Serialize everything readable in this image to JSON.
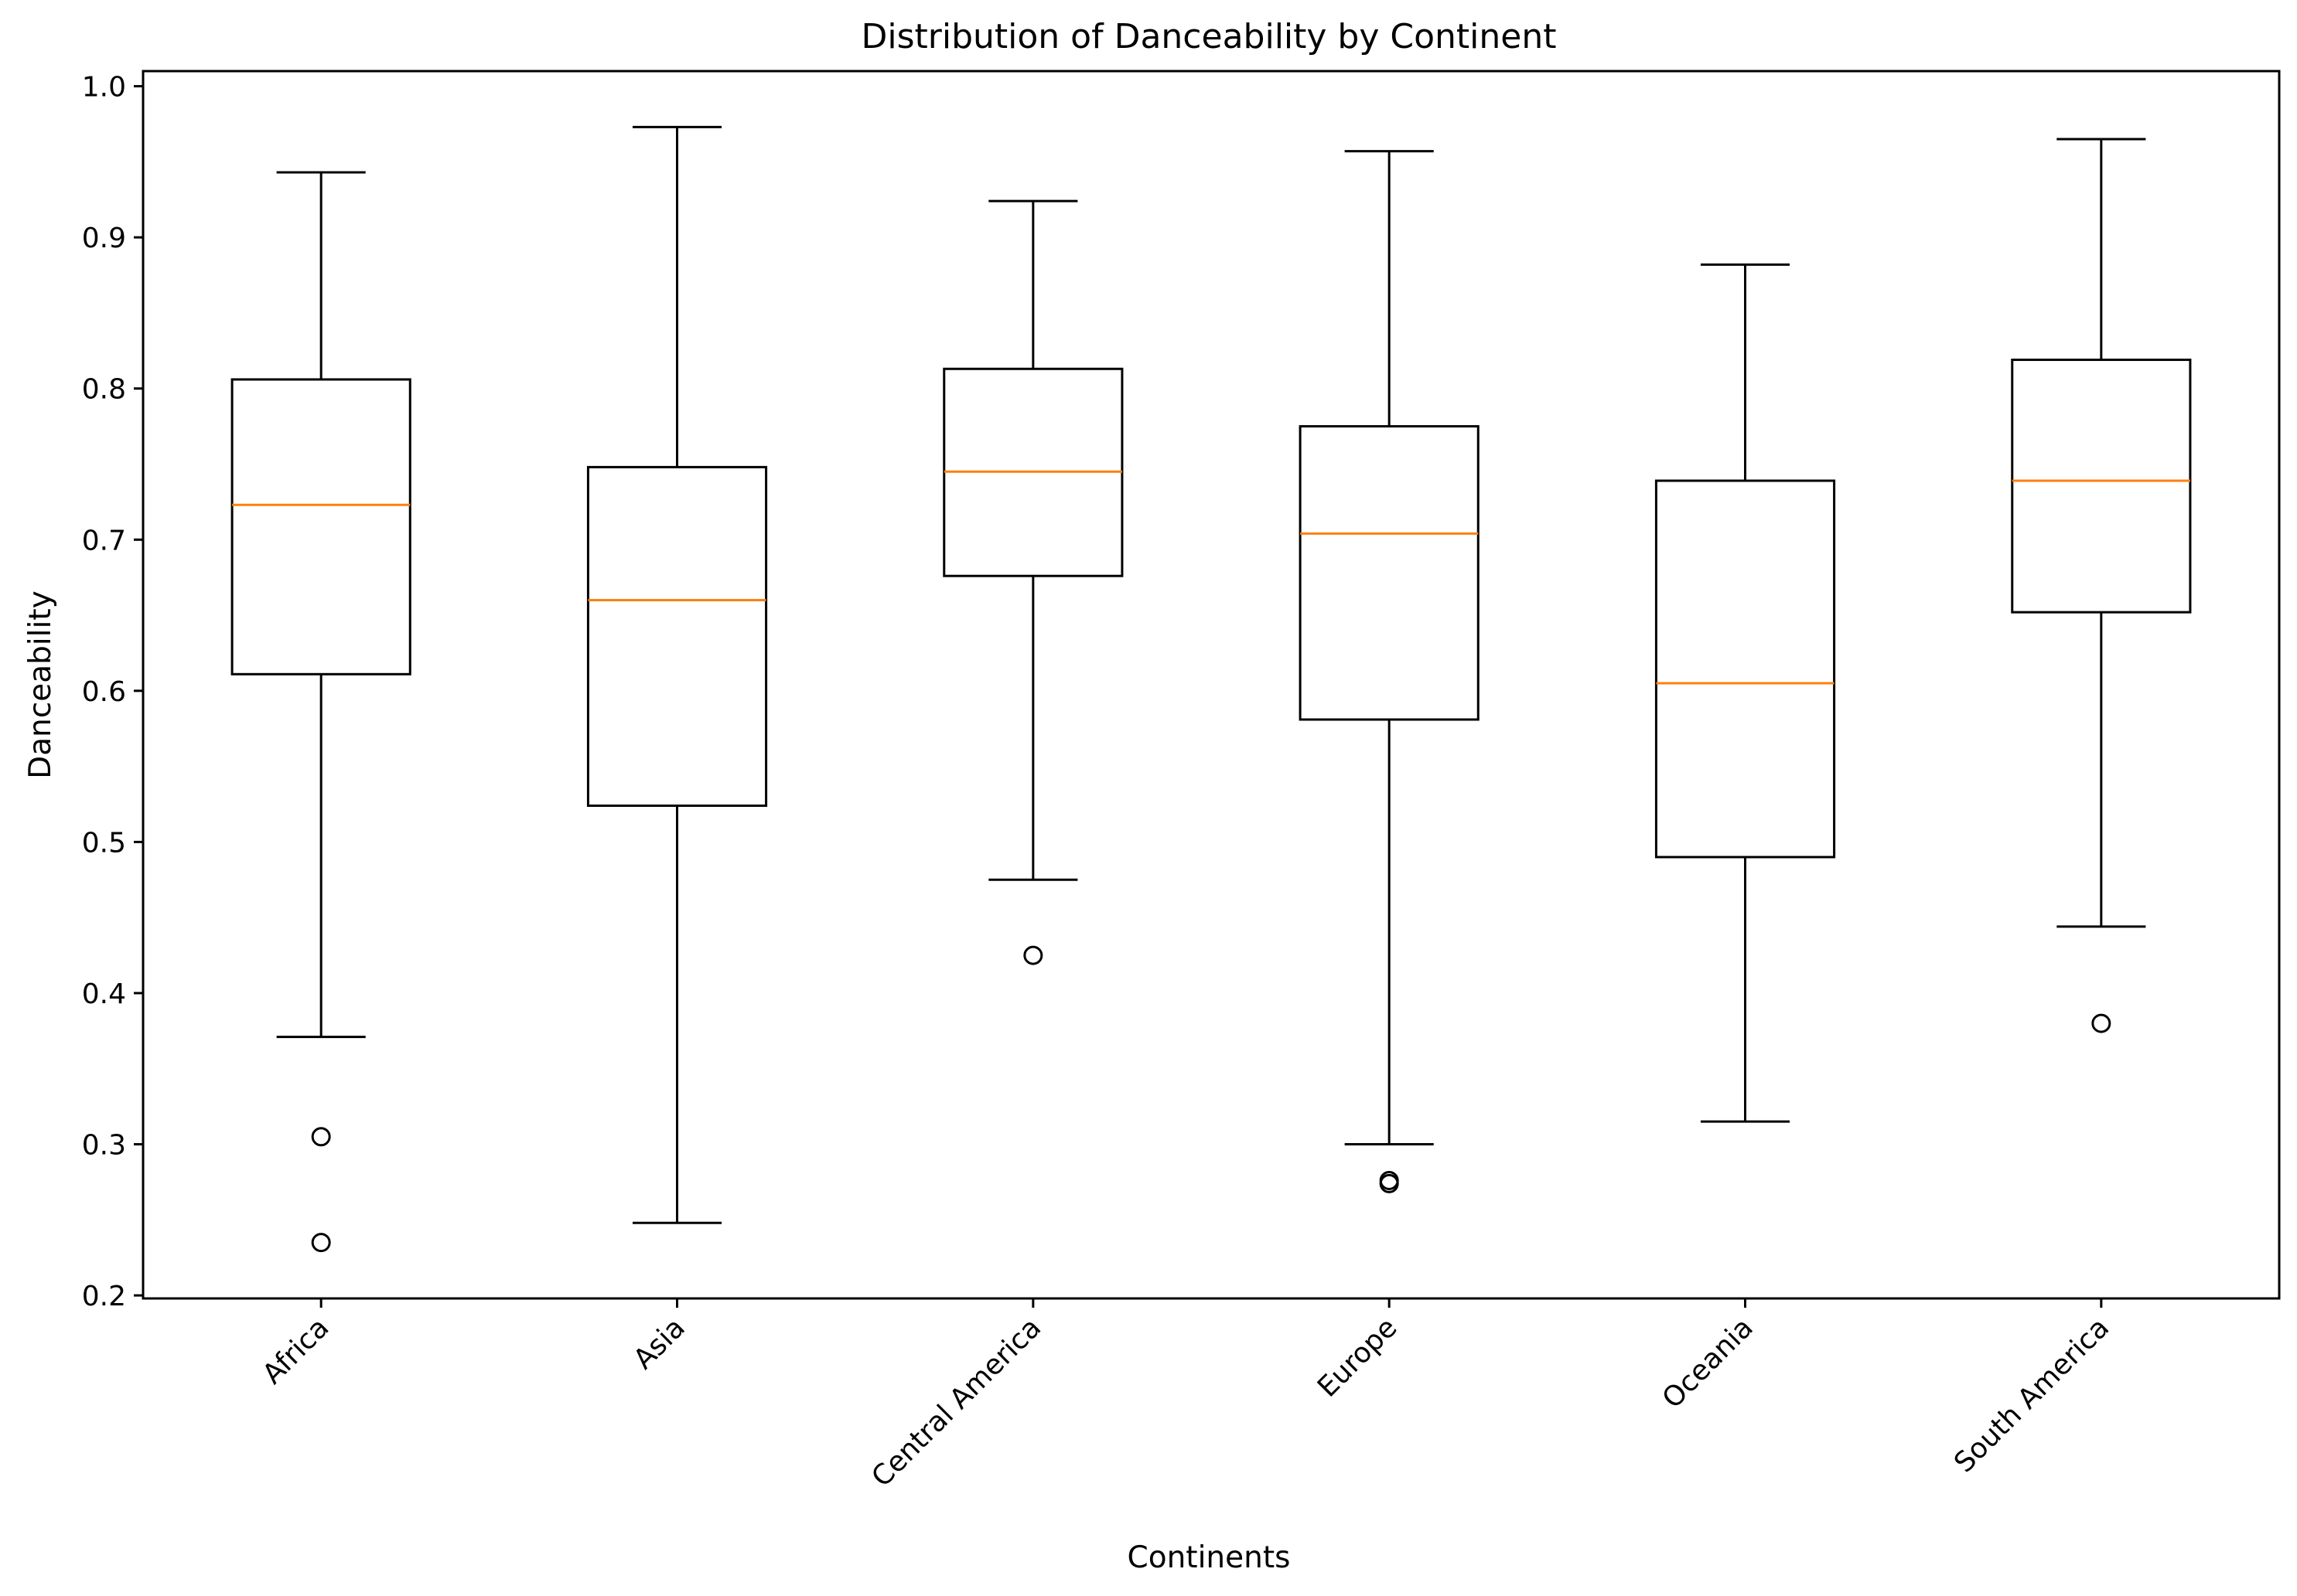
{
  "chart_data": {
    "type": "box",
    "title": "Distribution of Danceability by Continent",
    "xlabel": "Continents",
    "ylabel": "Danceability",
    "ylim": [
      0.198,
      1.01
    ],
    "yticks": [
      0.2,
      0.3,
      0.4,
      0.5,
      0.6,
      0.7,
      0.8,
      0.9,
      1.0
    ],
    "ytick_labels": [
      "0.2",
      "0.3",
      "0.4",
      "0.5",
      "0.6",
      "0.7",
      "0.8",
      "0.9",
      "1.0"
    ],
    "grid": false,
    "legend": "none",
    "colors": {
      "box": "#000000",
      "median": "#ff7f0e"
    },
    "categories": [
      "Africa",
      "Asia",
      "Central America",
      "Europe",
      "Oceania",
      "South America"
    ],
    "boxes": [
      {
        "category": "Africa",
        "whisker_low": 0.371,
        "q1": 0.611,
        "median": 0.723,
        "q3": 0.806,
        "whisker_high": 0.943,
        "outliers": [
          0.305,
          0.235
        ]
      },
      {
        "category": "Asia",
        "whisker_low": 0.248,
        "q1": 0.524,
        "median": 0.66,
        "q3": 0.748,
        "whisker_high": 0.973,
        "outliers": []
      },
      {
        "category": "Central America",
        "whisker_low": 0.475,
        "q1": 0.676,
        "median": 0.745,
        "q3": 0.813,
        "whisker_high": 0.924,
        "outliers": [
          0.425
        ]
      },
      {
        "category": "Europe",
        "whisker_low": 0.3,
        "q1": 0.581,
        "median": 0.704,
        "q3": 0.775,
        "whisker_high": 0.957,
        "outliers": [
          0.276,
          0.274
        ]
      },
      {
        "category": "Oceania",
        "whisker_low": 0.315,
        "q1": 0.49,
        "median": 0.605,
        "q3": 0.739,
        "whisker_high": 0.882,
        "outliers": []
      },
      {
        "category": "South America",
        "whisker_low": 0.444,
        "q1": 0.652,
        "median": 0.739,
        "q3": 0.819,
        "whisker_high": 0.965,
        "outliers": [
          0.38
        ]
      }
    ]
  }
}
